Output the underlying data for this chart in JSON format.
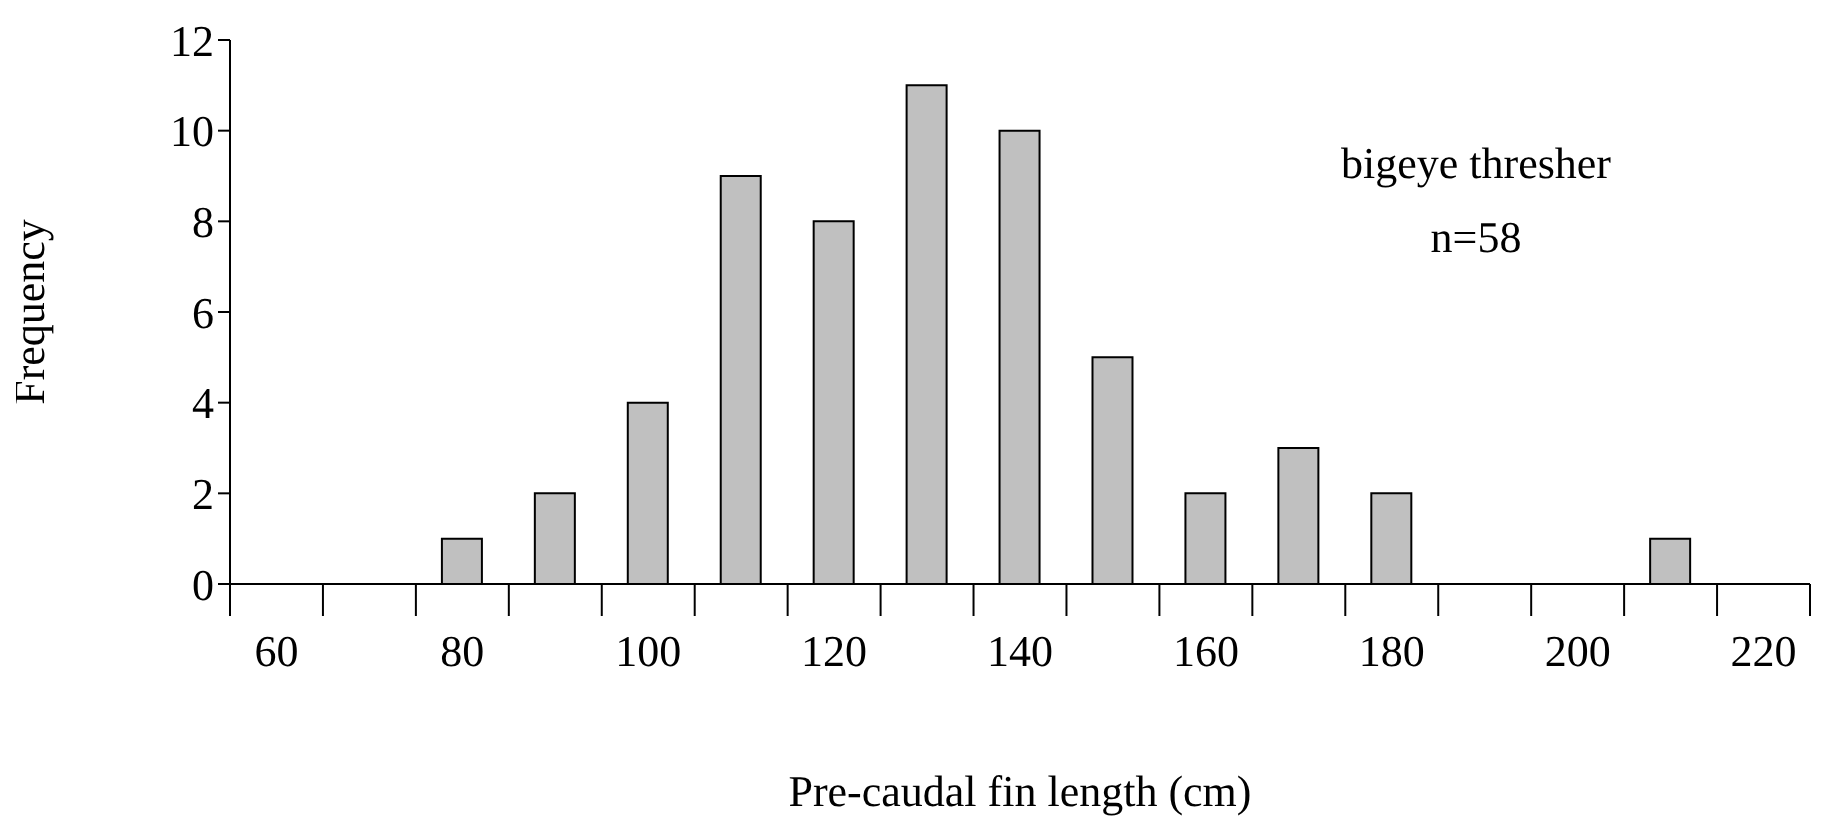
{
  "chart_data": {
    "type": "bar",
    "xlabel": "Pre-caudal fin length (cm)",
    "ylabel": "Frequency",
    "categories": [
      "60",
      null,
      "80",
      null,
      "100",
      null,
      "120",
      null,
      "140",
      null,
      "160",
      null,
      "180",
      null,
      "200",
      null,
      "220"
    ],
    "values": [
      0,
      0,
      1,
      2,
      4,
      9,
      8,
      11,
      10,
      5,
      2,
      3,
      2,
      0,
      0,
      1,
      0
    ],
    "color": "#c0c0c0",
    "ylim": [
      0,
      12
    ],
    "yticks": [
      0,
      2,
      4,
      6,
      8,
      10,
      12
    ],
    "grid": false,
    "annotations": [
      "bigeye thresher",
      "n=58"
    ]
  }
}
